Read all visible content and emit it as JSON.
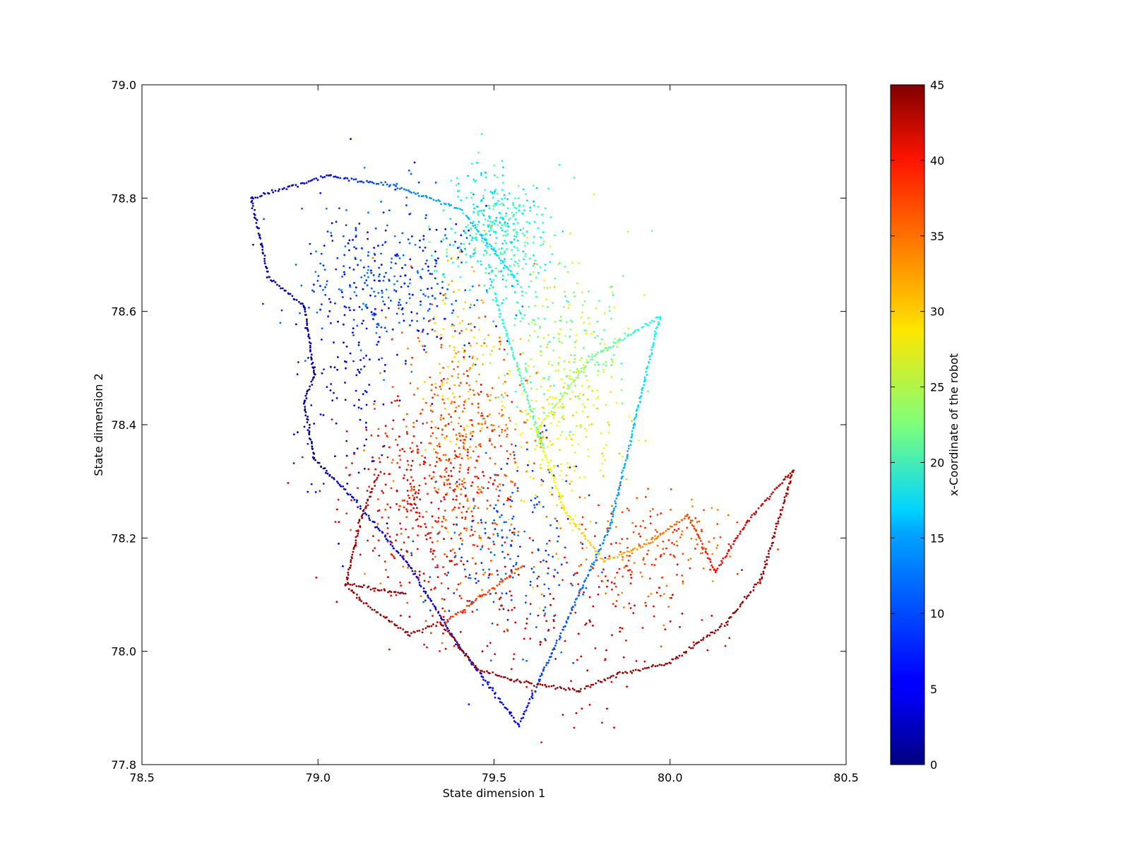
{
  "chart_data": {
    "type": "scatter",
    "title": "",
    "xlabel": "State dimension 1",
    "ylabel": "State dimension 2",
    "xlim": [
      78.5,
      80.5
    ],
    "ylim": [
      77.8,
      79.0
    ],
    "xticks": [
      "78.5",
      "79.0",
      "79.5",
      "80.0",
      "80.5"
    ],
    "yticks": [
      "77.8",
      "78.0",
      "78.2",
      "78.4",
      "78.6",
      "78.8",
      "79.0"
    ],
    "grid": false,
    "legend": "none",
    "colorbar": {
      "label": "x-Coordinate of the robot",
      "range": [
        0,
        45
      ],
      "ticks": [
        "0",
        "5",
        "10",
        "15",
        "20",
        "25",
        "30",
        "35",
        "40",
        "45"
      ],
      "colormap": "jet"
    },
    "trajectory": {
      "description_color_key": "c",
      "path": [
        {
          "x": 78.81,
          "y": 78.8,
          "c": 2
        },
        {
          "x": 78.86,
          "y": 78.66,
          "c": 2
        },
        {
          "x": 78.96,
          "y": 78.61,
          "c": 2
        },
        {
          "x": 78.99,
          "y": 78.49,
          "c": 1
        },
        {
          "x": 78.96,
          "y": 78.44,
          "c": 1
        },
        {
          "x": 78.99,
          "y": 78.34,
          "c": 1
        },
        {
          "x": 79.1,
          "y": 78.27,
          "c": 3
        },
        {
          "x": 79.26,
          "y": 78.15,
          "c": 4
        },
        {
          "x": 79.4,
          "y": 78.01,
          "c": 4
        },
        {
          "x": 79.57,
          "y": 77.87,
          "c": 5
        },
        {
          "x": 79.63,
          "y": 77.95,
          "c": 8
        },
        {
          "x": 79.83,
          "y": 78.22,
          "c": 12
        },
        {
          "x": 79.97,
          "y": 78.59,
          "c": 17
        },
        {
          "x": 79.78,
          "y": 78.52,
          "c": 22
        },
        {
          "x": 79.62,
          "y": 78.39,
          "c": 27
        },
        {
          "x": 79.7,
          "y": 78.25,
          "c": 29
        },
        {
          "x": 79.81,
          "y": 78.16,
          "c": 31
        },
        {
          "x": 79.94,
          "y": 78.19,
          "c": 33
        },
        {
          "x": 80.05,
          "y": 78.24,
          "c": 36
        },
        {
          "x": 80.13,
          "y": 78.14,
          "c": 39
        },
        {
          "x": 80.22,
          "y": 78.23,
          "c": 41
        },
        {
          "x": 80.35,
          "y": 78.32,
          "c": 43
        },
        {
          "x": 80.26,
          "y": 78.13,
          "c": 44
        },
        {
          "x": 80.16,
          "y": 78.05,
          "c": 44
        },
        {
          "x": 80.0,
          "y": 77.98,
          "c": 44
        },
        {
          "x": 79.85,
          "y": 77.96,
          "c": 44
        },
        {
          "x": 79.74,
          "y": 77.93,
          "c": 44
        },
        {
          "x": 79.55,
          "y": 77.95,
          "c": 44
        },
        {
          "x": 79.45,
          "y": 77.97,
          "c": 44
        },
        {
          "x": 79.35,
          "y": 78.05,
          "c": 43
        },
        {
          "x": 79.26,
          "y": 78.03,
          "c": 44
        },
        {
          "x": 79.12,
          "y": 78.09,
          "c": 44
        },
        {
          "x": 79.08,
          "y": 78.12,
          "c": 44
        },
        {
          "x": 79.12,
          "y": 78.23,
          "c": 44
        },
        {
          "x": 79.17,
          "y": 78.31,
          "c": 42
        }
      ],
      "extra_segments": [
        [
          {
            "x": 78.81,
            "y": 78.8,
            "c": 2
          },
          {
            "x": 79.03,
            "y": 78.84,
            "c": 6
          },
          {
            "x": 79.22,
            "y": 78.82,
            "c": 10
          },
          {
            "x": 79.41,
            "y": 78.78,
            "c": 14
          }
        ],
        [
          {
            "x": 79.08,
            "y": 78.12,
            "c": 44
          },
          {
            "x": 79.25,
            "y": 78.1,
            "c": 44
          }
        ],
        [
          {
            "x": 79.36,
            "y": 78.05,
            "c": 38
          },
          {
            "x": 79.58,
            "y": 78.15,
            "c": 36
          }
        ],
        [
          {
            "x": 79.42,
            "y": 78.77,
            "c": 14
          },
          {
            "x": 79.57,
            "y": 78.65,
            "c": 16
          }
        ],
        [
          {
            "x": 79.5,
            "y": 78.63,
            "c": 17
          },
          {
            "x": 79.64,
            "y": 78.36,
            "c": 22
          }
        ]
      ]
    },
    "clusters": [
      {
        "name": "",
        "cx": 79.22,
        "cy": 78.66,
        "sx": 0.13,
        "sy": 0.07,
        "n": 360,
        "c_min": 5,
        "c_max": 12
      },
      {
        "name": "",
        "cx": 79.07,
        "cy": 78.48,
        "sx": 0.08,
        "sy": 0.12,
        "n": 120,
        "c_min": 3,
        "c_max": 7
      },
      {
        "name": "",
        "cx": 79.51,
        "cy": 78.74,
        "sx": 0.07,
        "sy": 0.06,
        "n": 380,
        "c_min": 14,
        "c_max": 22
      },
      {
        "name": "",
        "cx": 79.7,
        "cy": 78.55,
        "sx": 0.1,
        "sy": 0.08,
        "n": 230,
        "c_min": 19,
        "c_max": 27
      },
      {
        "name": "",
        "cx": 79.7,
        "cy": 78.38,
        "sx": 0.08,
        "sy": 0.1,
        "n": 200,
        "c_min": 26,
        "c_max": 31
      },
      {
        "name": "",
        "cx": 79.4,
        "cy": 78.5,
        "sx": 0.05,
        "sy": 0.1,
        "n": 120,
        "c_min": 29,
        "c_max": 33
      },
      {
        "name": "",
        "cx": 79.4,
        "cy": 78.35,
        "sx": 0.12,
        "sy": 0.12,
        "n": 420,
        "c_min": 33,
        "c_max": 38
      },
      {
        "name": "",
        "cx": 79.3,
        "cy": 78.25,
        "sx": 0.12,
        "sy": 0.1,
        "n": 330,
        "c_min": 38,
        "c_max": 42
      },
      {
        "name": "",
        "cx": 79.55,
        "cy": 78.18,
        "sx": 0.1,
        "sy": 0.09,
        "n": 200,
        "c_min": 7,
        "c_max": 11
      },
      {
        "name": "",
        "cx": 79.95,
        "cy": 78.18,
        "sx": 0.12,
        "sy": 0.05,
        "n": 190,
        "c_min": 33,
        "c_max": 39
      },
      {
        "name": "",
        "cx": 79.7,
        "cy": 78.06,
        "sx": 0.18,
        "sy": 0.07,
        "n": 150,
        "c_min": 39,
        "c_max": 43
      }
    ]
  }
}
